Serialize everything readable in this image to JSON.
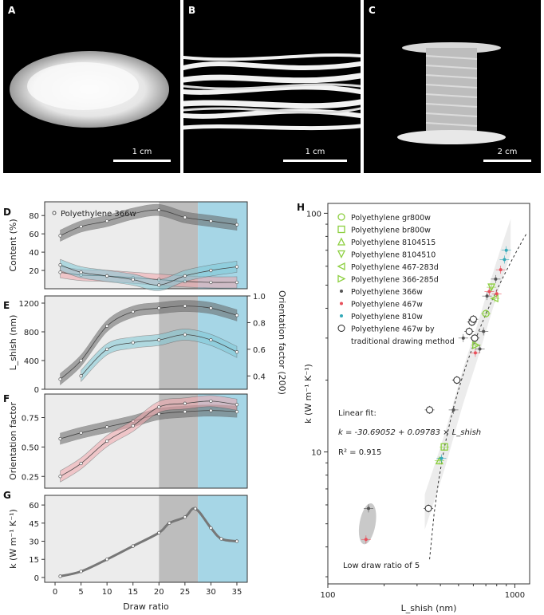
{
  "photos": [
    {
      "letter": "A",
      "scale": "1 cm",
      "desc": "polyethylene powder"
    },
    {
      "letter": "B",
      "scale": "1 cm",
      "desc": "polyethylene fibers"
    },
    {
      "letter": "C",
      "scale": "2 cm",
      "desc": "fiber spool"
    }
  ],
  "panel_letters": {
    "D": "D",
    "E": "E",
    "F": "F",
    "G": "G",
    "H": "H"
  },
  "colors": {
    "gray_band": "#bdbdbd",
    "blue_band": "#a6d6e6",
    "light_band": "#ececec",
    "gray_series": "#666666",
    "pink_series": "#f2a6ac",
    "blue_series": "#7fc8d6",
    "green": "#8ccf3f"
  },
  "chart_data": [
    {
      "type": "line",
      "id": "D",
      "xlabel": "",
      "ylabel": "Content (%)",
      "xlim": [
        -2,
        37
      ],
      "legend": "Polyethylene 366w",
      "yticks": [
        "20",
        "40",
        "60",
        "80"
      ],
      "series": [
        {
          "name": "Polyethylene 366w",
          "x": [
            1,
            5,
            10,
            15,
            20,
            25,
            30,
            35
          ],
          "values": [
            58,
            68,
            74,
            82,
            86,
            78,
            74,
            70
          ]
        },
        {
          "name": "",
          "x": [
            1,
            5,
            10,
            15,
            20,
            25,
            30,
            35
          ],
          "values": [
            18,
            15,
            14,
            12,
            10,
            8,
            7,
            7
          ]
        },
        {
          "name": "",
          "x": [
            1,
            5,
            10,
            15,
            20,
            25,
            30,
            35
          ],
          "values": [
            26,
            18,
            14,
            10,
            4,
            14,
            20,
            24
          ]
        }
      ]
    },
    {
      "type": "line",
      "id": "E",
      "ylabel": "L_shish (nm)",
      "y2label": "Orientation factor (200)",
      "ylim": [
        0,
        1300
      ],
      "y2lim": [
        0.3,
        1.0
      ],
      "yticks": [
        "0",
        "400",
        "800",
        "1200"
      ],
      "y2ticks": [
        "0.4",
        "0.6",
        "0.8",
        "1.0"
      ],
      "series": [
        {
          "name": "L_shish",
          "x": [
            1,
            5,
            10,
            15,
            20,
            25,
            30,
            35
          ],
          "values": [
            140,
            400,
            880,
            1080,
            1130,
            1160,
            1130,
            1030
          ]
        },
        {
          "name": "Orientation factor(200)",
          "axis": "right",
          "x": [
            5,
            10,
            15,
            20,
            25,
            30,
            35
          ],
          "values": [
            0.4,
            0.6,
            0.65,
            0.67,
            0.71,
            0.67,
            0.58
          ]
        }
      ]
    },
    {
      "type": "line",
      "id": "F",
      "ylabel": "Orientation factor",
      "ylim": [
        0.15,
        0.95
      ],
      "yticks": [
        "0.25",
        "0.50",
        "0.75"
      ],
      "series": [
        {
          "name": "",
          "x": [
            1,
            5,
            10,
            15,
            20,
            25,
            30,
            35
          ],
          "values": [
            0.57,
            0.62,
            0.67,
            0.72,
            0.78,
            0.8,
            0.81,
            0.8
          ]
        },
        {
          "name": "",
          "x": [
            1,
            5,
            10,
            15,
            20,
            25,
            30,
            35
          ],
          "values": [
            0.25,
            0.36,
            0.55,
            0.68,
            0.84,
            0.87,
            0.89,
            0.86
          ]
        }
      ]
    },
    {
      "type": "line",
      "id": "G",
      "xlabel": "Draw ratio",
      "ylabel": "k (W m⁻¹ K⁻¹)",
      "xlim": [
        -2,
        37
      ],
      "ylim": [
        -4,
        68
      ],
      "xticks": [
        "0",
        "5",
        "10",
        "15",
        "20",
        "25",
        "30",
        "35"
      ],
      "yticks": [
        "0",
        "15",
        "30",
        "45",
        "60"
      ],
      "series": [
        {
          "name": "",
          "x": [
            1,
            5,
            10,
            15,
            20,
            22,
            25,
            27,
            30,
            32,
            35
          ],
          "values": [
            1,
            5,
            15,
            26,
            37,
            45,
            50,
            57,
            41,
            32,
            30
          ]
        }
      ]
    },
    {
      "type": "scatter",
      "id": "H",
      "log": true,
      "xlabel": "L_shish (nm)",
      "ylabel": "k (W m⁻¹ K⁻¹)",
      "xlim": [
        100,
        1200
      ],
      "ylim": [
        2.8,
        110
      ],
      "xticks": [
        "100",
        "1000"
      ],
      "yticks": [
        "10",
        "100"
      ],
      "fit_title": "Linear fit:",
      "fit_eq": "k = -30.69052 + 0.09783 × L_shish",
      "fit_r2": "R² = 0.915",
      "annotation": "Low draw ratio of 5",
      "legend": [
        {
          "label": "Polyethylene gr800w",
          "marker": "circle",
          "color": "#8ccf3f"
        },
        {
          "label": "Polyethylene br800w",
          "marker": "square",
          "color": "#8ccf3f"
        },
        {
          "label": "Polyethylene 8104515",
          "marker": "triangle-up",
          "color": "#8ccf3f"
        },
        {
          "label": "Polyethylene 8104510",
          "marker": "triangle-down",
          "color": "#8ccf3f"
        },
        {
          "label": "Polyethylene 467-283d",
          "marker": "triangle-left",
          "color": "#8ccf3f"
        },
        {
          "label": "Polyethylene 366-285d",
          "marker": "triangle-right",
          "color": "#8ccf3f"
        },
        {
          "label": "Polyethylene 366w",
          "marker": "dot",
          "color": "#555555"
        },
        {
          "label": "Polyethylene 467w",
          "marker": "dot",
          "color": "#e8505b"
        },
        {
          "label": "Polyethylene 810w",
          "marker": "dot",
          "color": "#33a9b8"
        },
        {
          "label": "Polyethylene 467w by",
          "marker": "open-circle",
          "color": "#222222"
        },
        {
          "label": "traditional drawing method",
          "marker": "none",
          "color": "#222222"
        }
      ],
      "points": [
        {
          "x": 165,
          "y": 5.8,
          "m": "dot",
          "c": "#555555"
        },
        {
          "x": 160,
          "y": 4.3,
          "m": "dot",
          "c": "#e8505b"
        },
        {
          "x": 345,
          "y": 5.8,
          "m": "open-circle",
          "c": "#222222"
        },
        {
          "x": 350,
          "y": 15,
          "m": "open-circle",
          "c": "#222222"
        },
        {
          "x": 395,
          "y": 9.2,
          "m": "triangle-up",
          "c": "#8ccf3f"
        },
        {
          "x": 405,
          "y": 9.4,
          "m": "dot",
          "c": "#33a9b8"
        },
        {
          "x": 420,
          "y": 10.5,
          "m": "square",
          "c": "#8ccf3f"
        },
        {
          "x": 470,
          "y": 15,
          "m": "dot",
          "c": "#555555"
        },
        {
          "x": 490,
          "y": 20,
          "m": "open-circle",
          "c": "#222222"
        },
        {
          "x": 530,
          "y": 30,
          "m": "dot",
          "c": "#555555"
        },
        {
          "x": 570,
          "y": 32,
          "m": "open-circle",
          "c": "#222222"
        },
        {
          "x": 590,
          "y": 35,
          "m": "open-circle",
          "c": "#222222"
        },
        {
          "x": 600,
          "y": 36,
          "m": "open-circle",
          "c": "#222222"
        },
        {
          "x": 610,
          "y": 30,
          "m": "open-circle",
          "c": "#222222"
        },
        {
          "x": 620,
          "y": 28,
          "m": "triangle-right",
          "c": "#8ccf3f"
        },
        {
          "x": 615,
          "y": 26,
          "m": "dot",
          "c": "#e8505b"
        },
        {
          "x": 650,
          "y": 27,
          "m": "dot",
          "c": "#555555"
        },
        {
          "x": 680,
          "y": 32,
          "m": "dot",
          "c": "#555555"
        },
        {
          "x": 700,
          "y": 38,
          "m": "circle",
          "c": "#8ccf3f"
        },
        {
          "x": 710,
          "y": 45,
          "m": "dot",
          "c": "#555555"
        },
        {
          "x": 730,
          "y": 47,
          "m": "dot",
          "c": "#e8505b"
        },
        {
          "x": 750,
          "y": 49,
          "m": "triangle-down",
          "c": "#8ccf3f"
        },
        {
          "x": 780,
          "y": 44,
          "m": "triangle-left",
          "c": "#8ccf3f"
        },
        {
          "x": 790,
          "y": 53,
          "m": "dot",
          "c": "#555555"
        },
        {
          "x": 800,
          "y": 46,
          "m": "dot",
          "c": "#e8505b"
        },
        {
          "x": 840,
          "y": 58,
          "m": "dot",
          "c": "#e8505b"
        },
        {
          "x": 880,
          "y": 64,
          "m": "dot",
          "c": "#33a9b8"
        },
        {
          "x": 900,
          "y": 70,
          "m": "dot",
          "c": "#33a9b8"
        }
      ]
    }
  ]
}
